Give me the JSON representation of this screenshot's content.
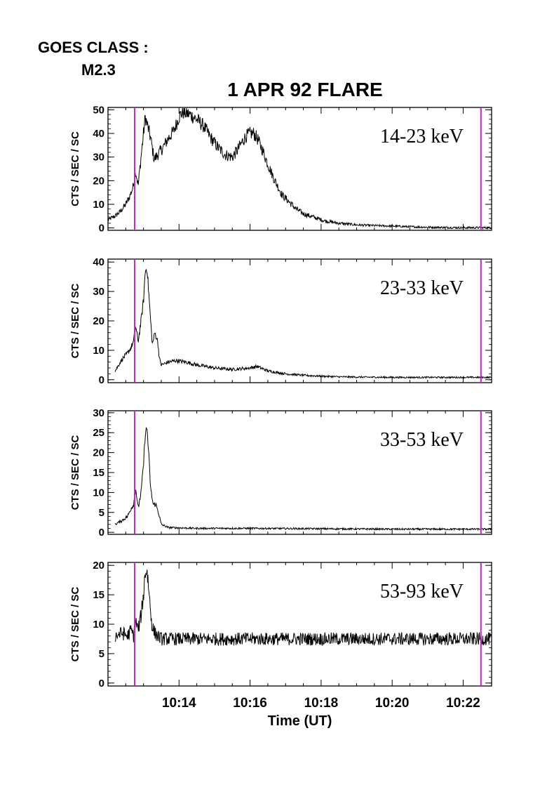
{
  "header": {
    "goes_label": "GOES CLASS :",
    "goes_value": "M2.3"
  },
  "chart_data": {
    "type": "line",
    "title": "1 APR 92 FLARE",
    "xlabel": "Time (UT)",
    "ylabel": "CTS / SEC / SC",
    "x_unit": "minutes after 10:00 UT",
    "xlim": [
      12.0,
      22.8
    ],
    "x_ticks": [
      14,
      16,
      18,
      20,
      22
    ],
    "x_tick_labels": [
      "10:14",
      "10:16",
      "10:18",
      "10:20",
      "10:22"
    ],
    "vlines": [
      12.75,
      22.5
    ],
    "vline_color": "#cc22cc",
    "line_color": "#000000",
    "panels": [
      {
        "label": "14-23 keV",
        "ylim": [
          -1,
          51
        ],
        "yticks": [
          0,
          10,
          20,
          30,
          40,
          50
        ],
        "series": {
          "x": [
            12.0,
            12.2,
            12.35,
            12.5,
            12.6,
            12.7,
            12.78,
            12.85,
            12.93,
            13.0,
            13.05,
            13.1,
            13.2,
            13.3,
            13.45,
            13.55,
            13.7,
            13.85,
            14.0,
            14.1,
            14.3,
            14.5,
            14.7,
            14.9,
            15.1,
            15.3,
            15.5,
            15.65,
            15.8,
            15.9,
            16.0,
            16.1,
            16.2,
            16.35,
            16.5,
            16.7,
            16.9,
            17.1,
            17.3,
            17.5,
            17.8,
            18.1,
            18.5,
            19.0,
            19.5,
            20.0,
            20.5,
            21.0,
            21.5,
            22.0,
            22.5,
            22.8
          ],
          "y": [
            3.5,
            5,
            7,
            10,
            13,
            17,
            24,
            18,
            30,
            40,
            47,
            44,
            38,
            29,
            32,
            34,
            38,
            41,
            47,
            49,
            48,
            46,
            43,
            38,
            34,
            31,
            30,
            33,
            37,
            39,
            40,
            40,
            38,
            33,
            27,
            20,
            14,
            11,
            8,
            6,
            4.5,
            3,
            2,
            1.3,
            1,
            0.8,
            0.5,
            0.3,
            0.2,
            0.1,
            0.1,
            0.1
          ]
        }
      },
      {
        "label": "23-33 keV",
        "ylim": [
          -1,
          41
        ],
        "yticks": [
          0,
          10,
          20,
          30,
          40
        ],
        "series": {
          "x": [
            12.2,
            12.4,
            12.55,
            12.65,
            12.72,
            12.78,
            12.85,
            12.93,
            13.0,
            13.05,
            13.1,
            13.15,
            13.2,
            13.25,
            13.32,
            13.4,
            13.45,
            13.5,
            13.7,
            13.9,
            14.2,
            14.5,
            15.0,
            15.5,
            16.0,
            16.2,
            16.5,
            17.0,
            17.5,
            18.0,
            18.5,
            19.0,
            20.0,
            21.0,
            22.0,
            22.8
          ],
          "y": [
            3,
            7,
            9,
            11,
            13,
            18,
            13,
            20,
            27,
            37,
            38,
            29,
            20,
            12,
            16,
            13,
            7,
            5,
            6,
            6.5,
            6,
            5,
            4,
            3.5,
            4,
            4.5,
            3,
            2,
            1.5,
            1.2,
            1,
            0.9,
            0.8,
            0.8,
            0.8,
            0.8
          ]
        }
      },
      {
        "label": "33-53 keV",
        "ylim": [
          -0.5,
          30.5
        ],
        "yticks": [
          0,
          5,
          10,
          15,
          20,
          25,
          30
        ],
        "series": {
          "x": [
            12.2,
            12.4,
            12.55,
            12.65,
            12.72,
            12.78,
            12.85,
            12.93,
            13.0,
            13.05,
            13.1,
            13.15,
            13.2,
            13.27,
            13.35,
            13.42,
            13.5,
            13.7,
            14.5,
            16.0,
            18.0,
            20.0,
            22.0,
            22.8
          ],
          "y": [
            2,
            3,
            4,
            6,
            7,
            11,
            6,
            10,
            17,
            25,
            26,
            19,
            11,
            7,
            7,
            5,
            2,
            1.2,
            1,
            1,
            0.9,
            0.8,
            0.8,
            0.8
          ]
        }
      },
      {
        "label": "53-93 keV",
        "ylim": [
          -0.5,
          20.5
        ],
        "yticks": [
          0,
          5,
          10,
          15,
          20
        ],
        "series": {
          "x": [
            12.2,
            12.4,
            12.55,
            12.65,
            12.72,
            12.78,
            12.85,
            12.93,
            13.0,
            13.05,
            13.1,
            13.15,
            13.2,
            13.25,
            13.32,
            13.4,
            13.5,
            14.0,
            15.0,
            16.0,
            17.0,
            18.0,
            19.0,
            20.0,
            21.0,
            22.0,
            22.8
          ],
          "y": [
            8,
            8.5,
            8,
            9,
            8,
            10.5,
            9,
            11.5,
            15,
            19,
            19,
            16,
            12,
            9.5,
            8.5,
            8,
            7.5,
            7.5,
            7.5,
            7.5,
            7.5,
            7.5,
            7.5,
            7.5,
            7.5,
            7.5,
            7.5
          ]
        }
      }
    ]
  }
}
